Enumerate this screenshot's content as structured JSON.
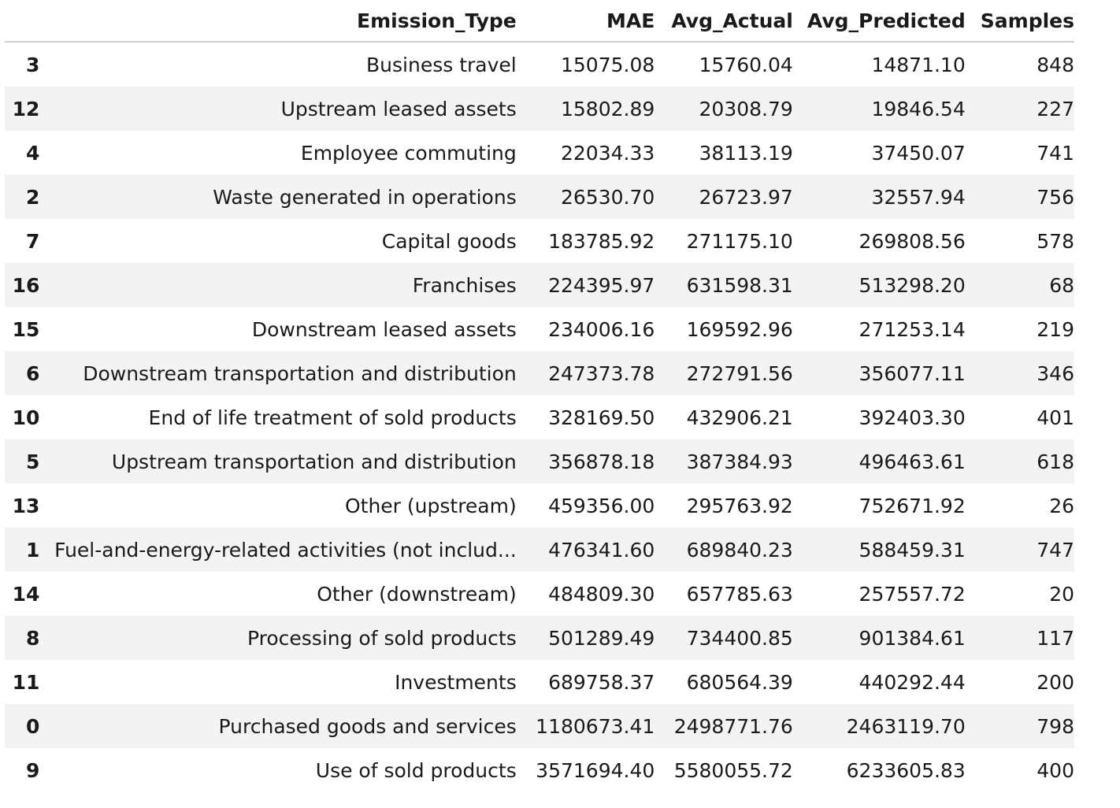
{
  "table": {
    "columns": [
      "",
      "Emission_Type",
      "MAE",
      "Avg_Actual",
      "Avg_Predicted",
      "Samples"
    ],
    "rows": [
      {
        "index": "3",
        "type": "Business travel",
        "mae": "15075.08",
        "actual": "15760.04",
        "predicted": "14871.10",
        "samples": "848"
      },
      {
        "index": "12",
        "type": "Upstream leased assets",
        "mae": "15802.89",
        "actual": "20308.79",
        "predicted": "19846.54",
        "samples": "227"
      },
      {
        "index": "4",
        "type": "Employee commuting",
        "mae": "22034.33",
        "actual": "38113.19",
        "predicted": "37450.07",
        "samples": "741"
      },
      {
        "index": "2",
        "type": "Waste generated in operations",
        "mae": "26530.70",
        "actual": "26723.97",
        "predicted": "32557.94",
        "samples": "756"
      },
      {
        "index": "7",
        "type": "Capital goods",
        "mae": "183785.92",
        "actual": "271175.10",
        "predicted": "269808.56",
        "samples": "578"
      },
      {
        "index": "16",
        "type": "Franchises",
        "mae": "224395.97",
        "actual": "631598.31",
        "predicted": "513298.20",
        "samples": "68"
      },
      {
        "index": "15",
        "type": "Downstream leased assets",
        "mae": "234006.16",
        "actual": "169592.96",
        "predicted": "271253.14",
        "samples": "219"
      },
      {
        "index": "6",
        "type": "Downstream transportation and distribution",
        "mae": "247373.78",
        "actual": "272791.56",
        "predicted": "356077.11",
        "samples": "346"
      },
      {
        "index": "10",
        "type": "End of life treatment of sold products",
        "mae": "328169.50",
        "actual": "432906.21",
        "predicted": "392403.30",
        "samples": "401"
      },
      {
        "index": "5",
        "type": "Upstream transportation and distribution",
        "mae": "356878.18",
        "actual": "387384.93",
        "predicted": "496463.61",
        "samples": "618"
      },
      {
        "index": "13",
        "type": "Other (upstream)",
        "mae": "459356.00",
        "actual": "295763.92",
        "predicted": "752671.92",
        "samples": "26"
      },
      {
        "index": "1",
        "type": "Fuel-and-energy-related activities (not includ...",
        "mae": "476341.60",
        "actual": "689840.23",
        "predicted": "588459.31",
        "samples": "747"
      },
      {
        "index": "14",
        "type": "Other (downstream)",
        "mae": "484809.30",
        "actual": "657785.63",
        "predicted": "257557.72",
        "samples": "20"
      },
      {
        "index": "8",
        "type": "Processing of sold products",
        "mae": "501289.49",
        "actual": "734400.85",
        "predicted": "901384.61",
        "samples": "117"
      },
      {
        "index": "11",
        "type": "Investments",
        "mae": "689758.37",
        "actual": "680564.39",
        "predicted": "440292.44",
        "samples": "200"
      },
      {
        "index": "0",
        "type": "Purchased goods and services",
        "mae": "1180673.41",
        "actual": "2498771.76",
        "predicted": "2463119.70",
        "samples": "798"
      },
      {
        "index": "9",
        "type": "Use of sold products",
        "mae": "3571694.40",
        "actual": "5580055.72",
        "predicted": "6233605.83",
        "samples": "400"
      }
    ]
  }
}
